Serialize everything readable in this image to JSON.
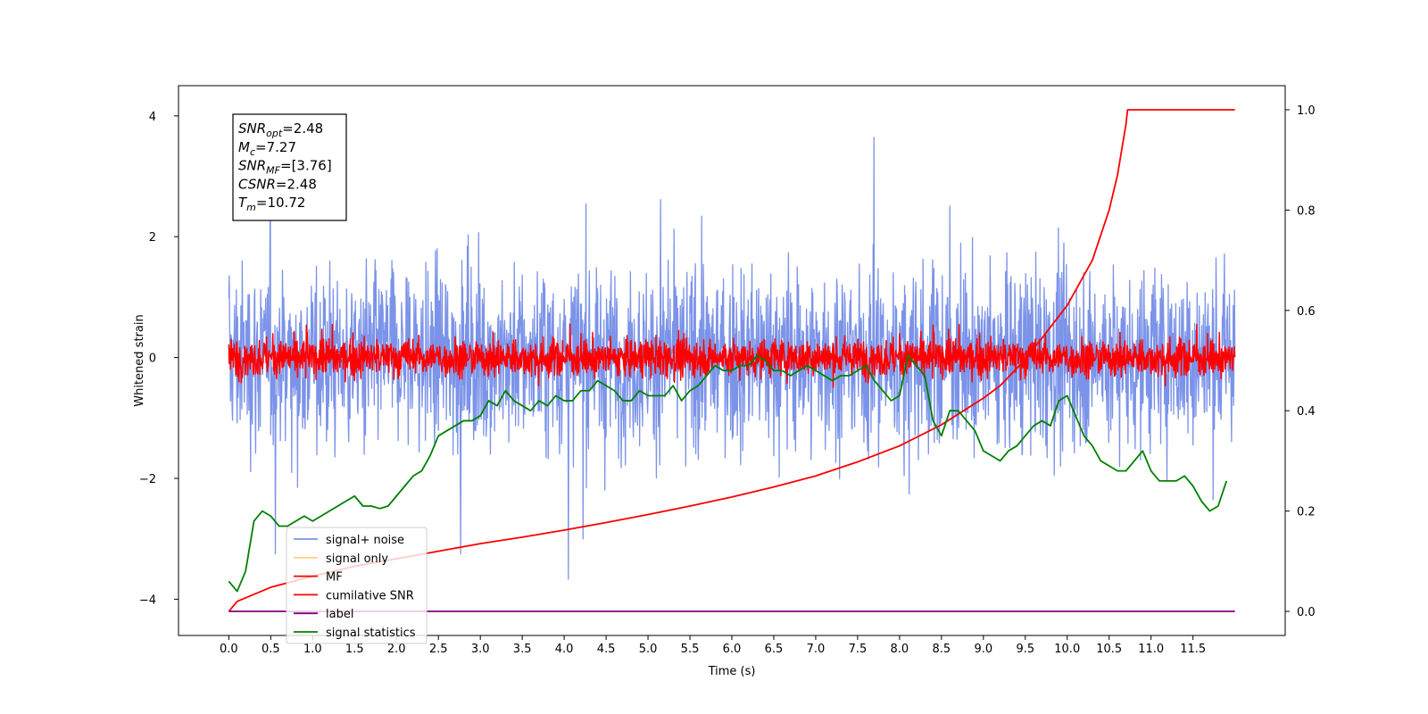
{
  "chart_data": {
    "type": "line",
    "xlabel": "Time (s)",
    "ylabel": "Whitened strain",
    "x_range": [
      -0.6,
      12.6
    ],
    "x_ticks": [
      0.0,
      0.5,
      1.0,
      1.5,
      2.0,
      2.5,
      3.0,
      3.5,
      4.0,
      4.5,
      5.0,
      5.5,
      6.0,
      6.5,
      7.0,
      7.5,
      8.0,
      8.5,
      9.0,
      9.5,
      10.0,
      10.5,
      11.0,
      11.5
    ],
    "x_tick_labels": [
      "0.0",
      "0.5",
      "1.0",
      "1.5",
      "2.0",
      "2.5",
      "3.0",
      "3.5",
      "4.0",
      "4.5",
      "5.0",
      "5.5",
      "6.0",
      "6.5",
      "7.0",
      "7.5",
      "8.0",
      "8.5",
      "9.0",
      "9.5",
      "10.0",
      "10.5",
      "11.0",
      "11.5"
    ],
    "y_left_range": [
      -4.6,
      4.5
    ],
    "y_left_ticks": [
      -4,
      -2,
      0,
      2,
      4
    ],
    "y_left_tick_labels": [
      "−4",
      "−2",
      "0",
      "2",
      "4"
    ],
    "y_right_range": [
      -0.048,
      1.048
    ],
    "y_right_ticks": [
      0.0,
      0.2,
      0.4,
      0.6,
      0.8,
      1.0
    ],
    "y_right_tick_labels": [
      "0.0",
      "0.2",
      "0.4",
      "0.6",
      "0.8",
      "1.0"
    ],
    "grid": false,
    "legend_position": "lower-left",
    "annotation_box": {
      "lines": [
        {
          "base": "SNR",
          "sub": "opt",
          "rest": "=2.48"
        },
        {
          "base": "M",
          "sub": "c",
          "rest": "=7.27"
        },
        {
          "base": "SNR",
          "sub": "MF",
          "rest": "=[3.76]"
        },
        {
          "base": "CSNR",
          "sub": "",
          "rest": "=2.48"
        },
        {
          "base": "T",
          "sub": "m",
          "rest": "=10.72"
        }
      ]
    },
    "series": [
      {
        "name": "signal+ noise",
        "color": "#7b93e8",
        "axis": "left",
        "kind": "noise",
        "x_start": 0.0,
        "x_end": 12.0,
        "amplitude_range": [
          -4.1,
          4.1
        ]
      },
      {
        "name": "signal only",
        "color": "#ffd28a",
        "axis": "left",
        "kind": "hidden"
      },
      {
        "name": "MF",
        "color": "#ff0000",
        "axis": "left",
        "kind": "noise",
        "x_start": 0.0,
        "x_end": 12.0,
        "amplitude_range": [
          -0.5,
          1.0
        ]
      },
      {
        "name": "cumilative SNR",
        "color": "#ff0000",
        "axis": "right",
        "x": [
          0.0,
          0.1,
          0.5,
          1.0,
          1.5,
          2.0,
          2.5,
          3.0,
          3.5,
          4.0,
          4.5,
          5.0,
          5.5,
          6.0,
          6.5,
          7.0,
          7.5,
          8.0,
          8.5,
          9.0,
          9.2,
          9.5,
          10.0,
          10.3,
          10.5,
          10.6,
          10.7,
          10.72,
          11.0,
          12.0
        ],
        "y": [
          0.0,
          0.02,
          0.048,
          0.07,
          0.09,
          0.105,
          0.12,
          0.135,
          0.148,
          0.162,
          0.177,
          0.193,
          0.21,
          0.228,
          0.248,
          0.27,
          0.298,
          0.33,
          0.372,
          0.425,
          0.45,
          0.502,
          0.61,
          0.7,
          0.8,
          0.87,
          0.97,
          1.0,
          1.0,
          1.0
        ]
      },
      {
        "name": "label",
        "color": "#800080",
        "axis": "right",
        "x": [
          0.0,
          12.0
        ],
        "y": [
          0.0,
          0.0
        ]
      },
      {
        "name": "signal statistics",
        "color": "#008000",
        "axis": "right",
        "x": [
          0.0,
          0.1,
          0.2,
          0.3,
          0.4,
          0.5,
          0.6,
          0.7,
          0.8,
          0.9,
          1.0,
          1.1,
          1.2,
          1.3,
          1.4,
          1.5,
          1.6,
          1.7,
          1.8,
          1.9,
          2.0,
          2.1,
          2.2,
          2.3,
          2.4,
          2.5,
          2.6,
          2.7,
          2.8,
          2.9,
          3.0,
          3.1,
          3.2,
          3.3,
          3.4,
          3.5,
          3.6,
          3.7,
          3.8,
          3.9,
          4.0,
          4.1,
          4.2,
          4.3,
          4.4,
          4.5,
          4.6,
          4.7,
          4.8,
          4.9,
          5.0,
          5.1,
          5.2,
          5.3,
          5.4,
          5.5,
          5.6,
          5.7,
          5.8,
          5.9,
          6.0,
          6.1,
          6.2,
          6.3,
          6.4,
          6.5,
          6.6,
          6.7,
          6.8,
          6.9,
          7.0,
          7.1,
          7.2,
          7.3,
          7.4,
          7.5,
          7.6,
          7.7,
          7.8,
          7.9,
          8.0,
          8.1,
          8.2,
          8.3,
          8.4,
          8.5,
          8.6,
          8.7,
          8.8,
          8.9,
          9.0,
          9.1,
          9.2,
          9.3,
          9.4,
          9.5,
          9.6,
          9.7,
          9.8,
          9.9,
          10.0,
          10.1,
          10.2,
          10.3,
          10.4,
          10.5,
          10.6,
          10.7,
          10.8,
          10.9,
          11.0,
          11.1,
          11.2,
          11.3,
          11.4,
          11.5,
          11.6,
          11.7,
          11.8,
          11.9
        ],
        "y": [
          0.06,
          0.04,
          0.08,
          0.18,
          0.2,
          0.19,
          0.17,
          0.17,
          0.18,
          0.19,
          0.18,
          0.19,
          0.2,
          0.21,
          0.22,
          0.23,
          0.21,
          0.21,
          0.205,
          0.21,
          0.23,
          0.25,
          0.27,
          0.28,
          0.31,
          0.35,
          0.36,
          0.37,
          0.38,
          0.38,
          0.39,
          0.42,
          0.41,
          0.44,
          0.42,
          0.41,
          0.4,
          0.42,
          0.41,
          0.43,
          0.42,
          0.42,
          0.44,
          0.44,
          0.46,
          0.45,
          0.44,
          0.42,
          0.42,
          0.44,
          0.43,
          0.43,
          0.43,
          0.45,
          0.42,
          0.44,
          0.45,
          0.47,
          0.49,
          0.48,
          0.48,
          0.49,
          0.49,
          0.51,
          0.5,
          0.48,
          0.48,
          0.47,
          0.48,
          0.49,
          0.48,
          0.47,
          0.46,
          0.47,
          0.47,
          0.48,
          0.49,
          0.46,
          0.44,
          0.42,
          0.43,
          0.51,
          0.49,
          0.47,
          0.38,
          0.35,
          0.4,
          0.4,
          0.38,
          0.36,
          0.32,
          0.31,
          0.3,
          0.32,
          0.33,
          0.35,
          0.37,
          0.38,
          0.37,
          0.42,
          0.43,
          0.39,
          0.35,
          0.33,
          0.3,
          0.29,
          0.28,
          0.28,
          0.3,
          0.32,
          0.28,
          0.26,
          0.26,
          0.26,
          0.27,
          0.25,
          0.22,
          0.2,
          0.21,
          0.26
        ]
      }
    ]
  }
}
